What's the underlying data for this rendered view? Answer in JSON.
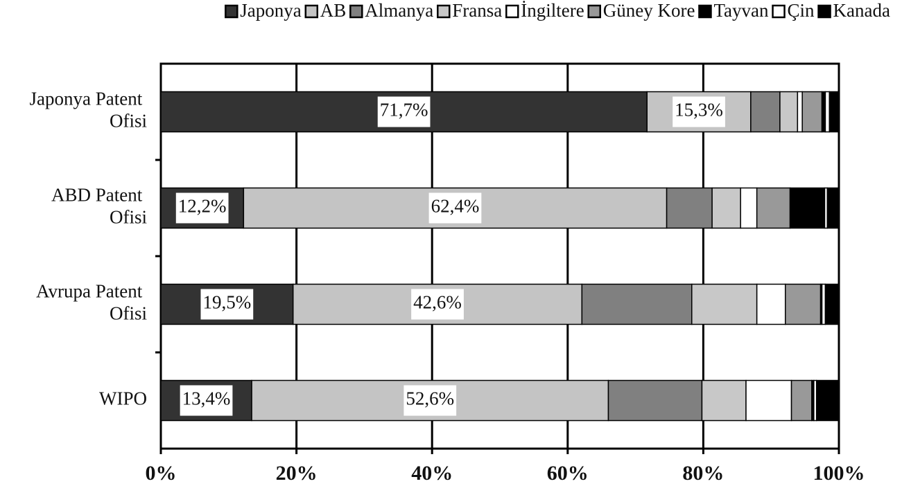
{
  "chart_data": {
    "type": "stacked-bar-horizontal",
    "categories": [
      "Japonya Patent Ofisi",
      "ABD Patent Ofisi",
      "Avrupa Patent Ofisi",
      "WIPO"
    ],
    "series": [
      {
        "name": "Japonya",
        "color": "#333333",
        "values": [
          71.7,
          12.2,
          19.5,
          13.4
        ],
        "value_labels": [
          "71,7%",
          "12,2%",
          "19,5%",
          "13,4%"
        ]
      },
      {
        "name": "AB",
        "color": "#c4c4c4",
        "values": [
          15.3,
          62.4,
          42.6,
          52.6
        ],
        "value_labels": [
          "15,3%",
          "62,4%",
          "42,6%",
          "52,6%"
        ]
      },
      {
        "name": "Almanya",
        "color": "#808080",
        "values": [
          4.3,
          6.7,
          16.2,
          13.8
        ]
      },
      {
        "name": "Fransa",
        "color": "#c8c8c8",
        "values": [
          2.6,
          4.2,
          9.6,
          6.5
        ]
      },
      {
        "name": "İngiltere",
        "color": "#ffffff",
        "values": [
          0.7,
          2.4,
          4.2,
          6.7
        ]
      },
      {
        "name": "Güney Kore",
        "color": "#999999",
        "values": [
          2.9,
          4.9,
          5.2,
          3.0
        ]
      },
      {
        "name": "Tayvan",
        "color": "#000000",
        "values": [
          0.5,
          5.1,
          0.2,
          0.3
        ]
      },
      {
        "name": "Çin",
        "color": "#ffffff",
        "values": [
          0.6,
          0.4,
          0.5,
          0.4
        ]
      },
      {
        "name": "Kanada",
        "color": "#000000",
        "values": [
          1.4,
          1.7,
          2.0,
          3.3
        ]
      }
    ],
    "xlim": [
      0,
      100
    ],
    "xticks": [
      {
        "value": 0,
        "label": "0%"
      },
      {
        "value": 20,
        "label": "20%"
      },
      {
        "value": 40,
        "label": "40%"
      },
      {
        "value": 60,
        "label": "60%"
      },
      {
        "value": 80,
        "label": "80%"
      },
      {
        "value": 100,
        "label": "100%"
      }
    ],
    "grid": true,
    "legend": "top"
  }
}
